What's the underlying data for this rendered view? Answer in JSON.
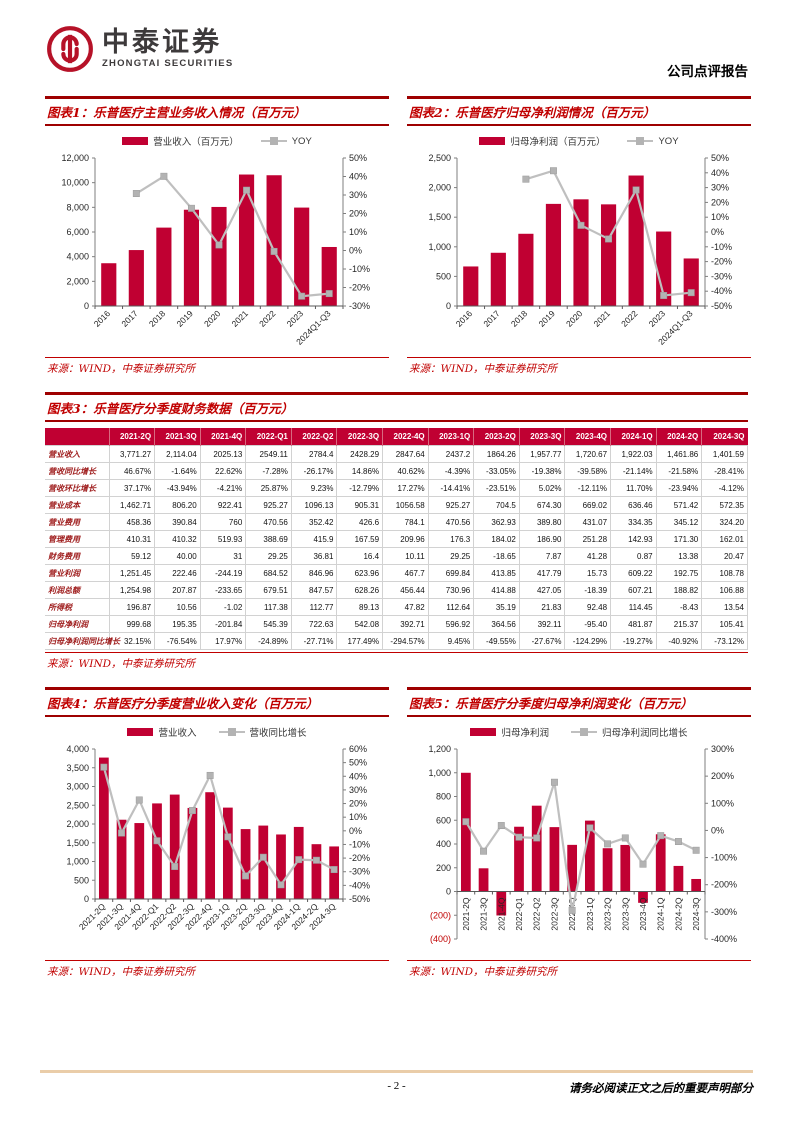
{
  "header": {
    "logo_cn": "中泰证券",
    "logo_en": "ZHONGTAI SECURITIES",
    "report_type": "公司点评报告",
    "brand_color": "#b61228"
  },
  "source_label": "来源：WIND，中泰证券研究所",
  "accent_colors": {
    "bar_red": "#c00032",
    "line_gray": "#bfbfbf",
    "title_red": "#c00000"
  },
  "chart_data": [
    {
      "type": "bar",
      "title": "图表1：乐普医疗主营业务收入情况（百万元）",
      "categories": [
        "2016",
        "2017",
        "2018",
        "2019",
        "2020",
        "2021",
        "2022",
        "2023",
        "2024Q1-Q3"
      ],
      "series": [
        {
          "name": "营业收入（百万元）",
          "kind": "bar",
          "axis": "left",
          "values": [
            3468,
            4535,
            6356,
            7805,
            8031,
            10660,
            10602,
            7980,
            4785
          ]
        },
        {
          "name": "YOY",
          "kind": "line",
          "axis": "right",
          "values": [
            null,
            30.8,
            40.1,
            22.8,
            3.0,
            32.6,
            -0.5,
            -24.7,
            -23.3
          ]
        }
      ],
      "left_axis": {
        "min": 0,
        "max": 12000,
        "step": 2000
      },
      "right_axis": {
        "min": -30,
        "max": 50,
        "step": 10,
        "suffix": "%"
      },
      "x_label_rotate": 45,
      "legend_position": "top",
      "grid": false
    },
    {
      "type": "bar",
      "title": "图表2：乐普医疗归母净利润情况（百万元）",
      "categories": [
        "2016",
        "2017",
        "2018",
        "2019",
        "2020",
        "2021",
        "2022",
        "2023",
        "2024Q1-Q3"
      ],
      "series": [
        {
          "name": "归母净利润（百万元）",
          "kind": "bar",
          "axis": "left",
          "values": [
            668,
            899,
            1220,
            1725,
            1802,
            1717,
            2204,
            1258,
            803
          ]
        },
        {
          "name": "YOY",
          "kind": "line",
          "axis": "right",
          "values": [
            null,
            null,
            35.7,
            41.4,
            4.5,
            -4.7,
            28.4,
            -42.9,
            -41.0
          ]
        }
      ],
      "left_axis": {
        "min": 0,
        "max": 2500,
        "step": 500
      },
      "right_axis": {
        "min": -50,
        "max": 50,
        "step": 10,
        "suffix": "%"
      },
      "x_label_rotate": 45,
      "legend_position": "top",
      "grid": false
    },
    {
      "type": "bar",
      "title": "图表4：乐普医疗分季度营业收入变化（百万元）",
      "categories": [
        "2021-2Q",
        "2021-3Q",
        "2021-4Q",
        "2022-Q1",
        "2022-Q2",
        "2022-3Q",
        "2022-4Q",
        "2023-1Q",
        "2023-2Q",
        "2023-3Q",
        "2023-4Q",
        "2024-1Q",
        "2024-2Q",
        "2024-3Q"
      ],
      "series": [
        {
          "name": "营业收入",
          "kind": "bar",
          "axis": "left",
          "values": [
            3771.27,
            2114.04,
            2025.13,
            2549.11,
            2784.4,
            2428.29,
            2847.64,
            2437.2,
            1864.26,
            1957.77,
            1720.67,
            1922.03,
            1461.86,
            1401.59
          ]
        },
        {
          "name": "营收同比增长",
          "kind": "line",
          "axis": "right",
          "values": [
            46.67,
            -1.64,
            22.62,
            -7.28,
            -26.17,
            14.86,
            40.62,
            -4.39,
            -33.05,
            -19.38,
            -39.58,
            -21.14,
            -21.58,
            -28.41
          ]
        }
      ],
      "left_axis": {
        "min": 0,
        "max": 4000,
        "step": 500
      },
      "right_axis": {
        "min": -50,
        "max": 60,
        "step": 10,
        "suffix": "%"
      },
      "x_label_rotate": 45,
      "legend_position": "top",
      "grid": false
    },
    {
      "type": "bar",
      "title": "图表5：乐普医疗分季度归母净利润变化（百万元）",
      "categories": [
        "2021-2Q",
        "2021-3Q",
        "2021-4Q",
        "2022-Q1",
        "2022-Q2",
        "2022-3Q",
        "2022-4Q",
        "2023-1Q",
        "2023-2Q",
        "2023-3Q",
        "2023-4Q",
        "2024-1Q",
        "2024-2Q",
        "2024-3Q"
      ],
      "series": [
        {
          "name": "归母净利润",
          "kind": "bar",
          "axis": "left",
          "values": [
            999.68,
            195.35,
            -201.84,
            545.39,
            722.63,
            542.08,
            392.71,
            596.92,
            364.56,
            392.11,
            -95.4,
            481.87,
            215.37,
            105.41
          ]
        },
        {
          "name": "归母净利润同比增长",
          "kind": "line",
          "axis": "right",
          "values": [
            32.15,
            -76.54,
            17.97,
            -24.89,
            -27.71,
            177.49,
            -294.57,
            9.45,
            -49.55,
            -27.67,
            -124.29,
            -19.27,
            -40.92,
            -73.12
          ]
        }
      ],
      "left_axis": {
        "min": -400,
        "max": 1200,
        "step": 200,
        "neg_parens": true
      },
      "right_axis": {
        "min": -400,
        "max": 300,
        "step": 100,
        "suffix": "%"
      },
      "x_label_rotate": 90,
      "legend_position": "top",
      "grid": false
    }
  ],
  "table": {
    "title": "图表3：乐普医疗分季度财务数据（百万元）",
    "columns": [
      "2021-2Q",
      "2021-3Q",
      "2021-4Q",
      "2022-Q1",
      "2022-Q2",
      "2022-3Q",
      "2022-4Q",
      "2023-1Q",
      "2023-2Q",
      "2023-3Q",
      "2023-4Q",
      "2024-1Q",
      "2024-2Q",
      "2024-3Q"
    ],
    "rows": [
      {
        "label": "营业收入",
        "values": [
          "3,771.27",
          "2,114.04",
          "2025.13",
          "2549.11",
          "2784.4",
          "2428.29",
          "2847.64",
          "2437.2",
          "1864.26",
          "1,957.77",
          "1,720.67",
          "1,922.03",
          "1,461.86",
          "1,401.59"
        ]
      },
      {
        "label": "营收同比增长",
        "values": [
          "46.67%",
          "-1.64%",
          "22.62%",
          "-7.28%",
          "-26.17%",
          "14.86%",
          "40.62%",
          "-4.39%",
          "-33.05%",
          "-19.38%",
          "-39.58%",
          "-21.14%",
          "-21.58%",
          "-28.41%"
        ]
      },
      {
        "label": "营收环比增长",
        "values": [
          "37.17%",
          "-43.94%",
          "-4.21%",
          "25.87%",
          "9.23%",
          "-12.79%",
          "17.27%",
          "-14.41%",
          "-23.51%",
          "5.02%",
          "-12.11%",
          "11.70%",
          "-23.94%",
          "-4.12%"
        ]
      },
      {
        "label": "营业成本",
        "values": [
          "1,462.71",
          "806.20",
          "922.41",
          "925.27",
          "1096.13",
          "905.31",
          "1056.58",
          "925.27",
          "704.5",
          "674.30",
          "669.02",
          "636.46",
          "571.42",
          "572.35"
        ]
      },
      {
        "label": "营业费用",
        "values": [
          "458.36",
          "390.84",
          "760",
          "470.56",
          "352.42",
          "426.6",
          "784.1",
          "470.56",
          "362.93",
          "389.80",
          "431.07",
          "334.35",
          "345.12",
          "324.20"
        ]
      },
      {
        "label": "管理费用",
        "values": [
          "410.31",
          "410.32",
          "519.93",
          "388.69",
          "415.9",
          "167.59",
          "209.96",
          "176.3",
          "184.02",
          "186.90",
          "251.28",
          "142.93",
          "171.30",
          "162.01"
        ]
      },
      {
        "label": "财务费用",
        "values": [
          "59.12",
          "40.00",
          "31",
          "29.25",
          "36.81",
          "16.4",
          "10.11",
          "29.25",
          "-18.65",
          "7.87",
          "41.28",
          "0.87",
          "13.38",
          "20.47"
        ]
      },
      {
        "label": "营业利润",
        "values": [
          "1,251.45",
          "222.46",
          "-244.19",
          "684.52",
          "846.96",
          "623.96",
          "467.7",
          "699.84",
          "413.85",
          "417.79",
          "15.73",
          "609.22",
          "192.75",
          "108.78"
        ]
      },
      {
        "label": "利润总额",
        "values": [
          "1,254.98",
          "207.87",
          "-233.65",
          "679.51",
          "847.57",
          "628.26",
          "456.44",
          "730.96",
          "414.88",
          "427.05",
          "-18.39",
          "607.21",
          "188.82",
          "106.88"
        ]
      },
      {
        "label": "所得税",
        "values": [
          "196.87",
          "10.56",
          "-1.02",
          "117.38",
          "112.77",
          "89.13",
          "47.82",
          "112.64",
          "35.19",
          "21.83",
          "92.48",
          "114.45",
          "-8.43",
          "13.54"
        ]
      },
      {
        "label": "归母净利润",
        "values": [
          "999.68",
          "195.35",
          "-201.84",
          "545.39",
          "722.63",
          "542.08",
          "392.71",
          "596.92",
          "364.56",
          "392.11",
          "-95.40",
          "481.87",
          "215.37",
          "105.41"
        ]
      },
      {
        "label": "归母净利润同比增长",
        "values": [
          "32.15%",
          "-76.54%",
          "17.97%",
          "-24.89%",
          "-27.71%",
          "177.49%",
          "-294.57%",
          "9.45%",
          "-49.55%",
          "-27.67%",
          "-124.29%",
          "-19.27%",
          "-40.92%",
          "-73.12%"
        ]
      }
    ]
  },
  "footer": {
    "page_number": "- 2 -",
    "notice": "请务必阅读正文之后的重要声明部分"
  }
}
